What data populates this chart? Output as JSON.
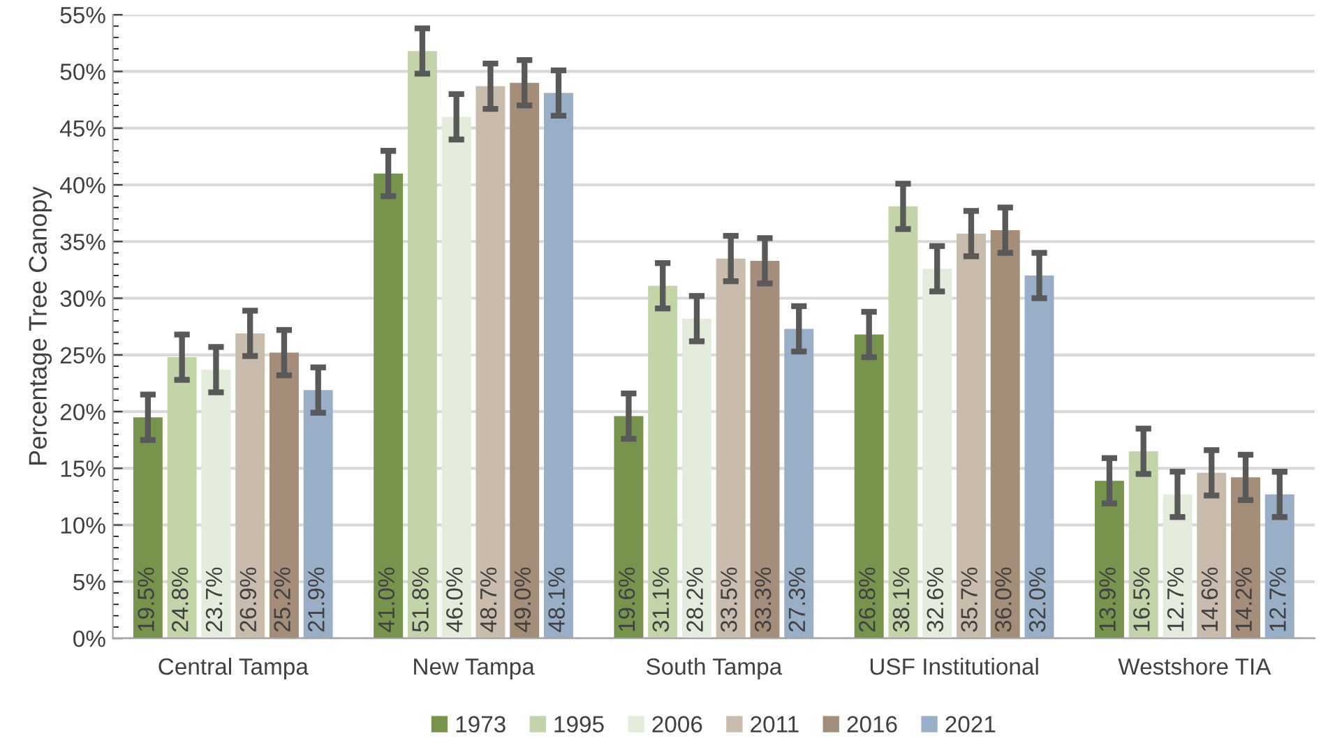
{
  "chart_data": {
    "type": "bar",
    "ylabel": "Percentage Tree Canopy",
    "categories": [
      "Central Tampa",
      "New Tampa",
      "South Tampa",
      "USF Institutional",
      "Westshore TIA"
    ],
    "series": [
      {
        "name": "1973",
        "color": "#76944c",
        "values": [
          19.5,
          41.0,
          19.6,
          26.8,
          13.9
        ],
        "errors": [
          2,
          2,
          2,
          2,
          2
        ]
      },
      {
        "name": "1995",
        "color": "#c3d4a8",
        "values": [
          24.8,
          51.8,
          31.1,
          38.1,
          16.5
        ],
        "errors": [
          2,
          2,
          2,
          2,
          2
        ]
      },
      {
        "name": "2006",
        "color": "#e4eddb",
        "values": [
          23.7,
          46.0,
          28.2,
          32.6,
          12.7
        ],
        "errors": [
          2,
          2,
          2,
          2,
          2
        ]
      },
      {
        "name": "2011",
        "color": "#c9bcad",
        "values": [
          26.9,
          48.7,
          33.5,
          35.7,
          14.6
        ],
        "errors": [
          2,
          2,
          2,
          2,
          2
        ]
      },
      {
        "name": "2016",
        "color": "#a48e79",
        "values": [
          25.2,
          49.0,
          33.3,
          36.0,
          14.2
        ],
        "errors": [
          2,
          2,
          2,
          2,
          2
        ]
      },
      {
        "name": "2021",
        "color": "#98afc7",
        "values": [
          21.9,
          48.1,
          27.3,
          32.0,
          12.7
        ],
        "errors": [
          2,
          2,
          2,
          2,
          2
        ]
      }
    ],
    "ylim": [
      0,
      55
    ],
    "yticks": [
      {
        "value": 0,
        "label": "0%"
      },
      {
        "value": 5,
        "label": "5%"
      },
      {
        "value": 10,
        "label": "10%"
      },
      {
        "value": 15,
        "label": "15%"
      },
      {
        "value": 20,
        "label": "20%"
      },
      {
        "value": 25,
        "label": "25%"
      },
      {
        "value": 30,
        "label": "30%"
      },
      {
        "value": 35,
        "label": "35%"
      },
      {
        "value": 40,
        "label": "40%"
      },
      {
        "value": 45,
        "label": "45%"
      },
      {
        "value": 50,
        "label": "50%"
      },
      {
        "value": 55,
        "label": "55%"
      }
    ],
    "value_labels": [
      [
        "19.5%",
        "41.0%",
        "19.6%",
        "26.8%",
        "13.9%"
      ],
      [
        "24.8%",
        "51.8%",
        "31.1%",
        "38.1%",
        "16.5%"
      ],
      [
        "23.7%",
        "46.0%",
        "28.2%",
        "32.6%",
        "12.7%"
      ],
      [
        "26.9%",
        "48.7%",
        "33.5%",
        "35.7%",
        "14.6%"
      ],
      [
        "25.2%",
        "49.0%",
        "33.3%",
        "36.0%",
        "14.2%"
      ],
      [
        "21.9%",
        "48.1%",
        "27.3%",
        "32.0%",
        "12.7%"
      ]
    ],
    "grid": "y",
    "legend": "bottom"
  }
}
